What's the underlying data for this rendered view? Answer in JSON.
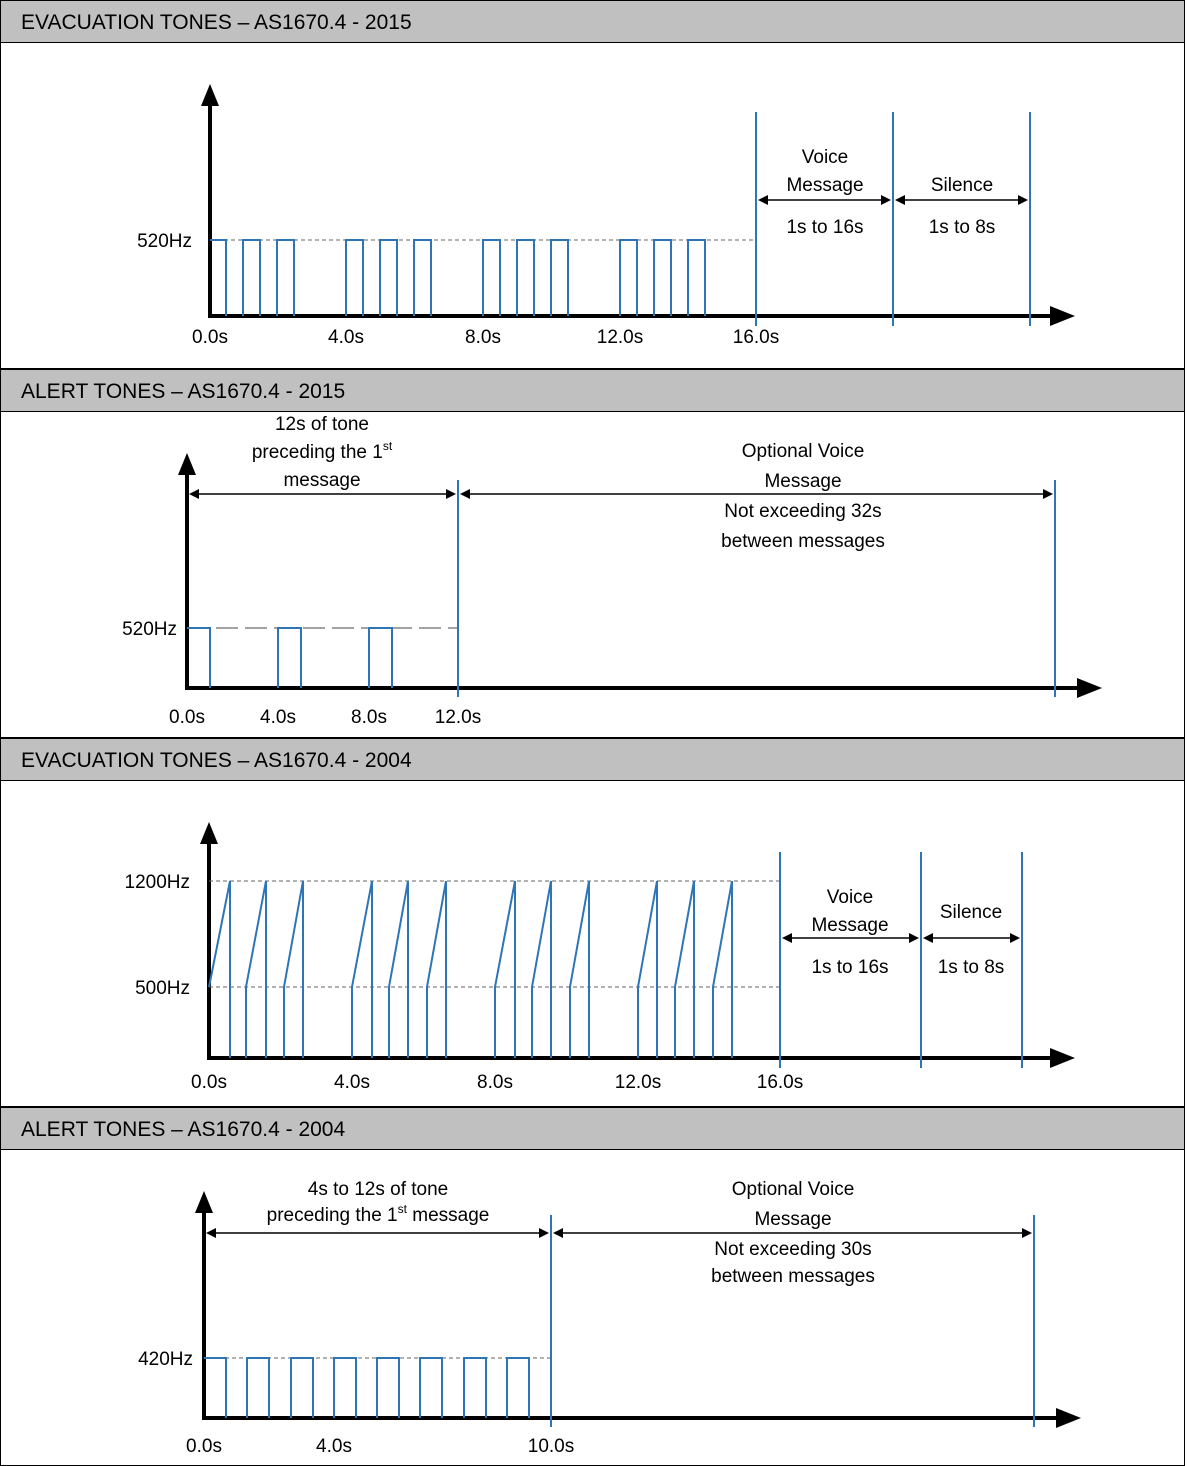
{
  "panels": [
    {
      "id": "evac2015",
      "title": "EVACUATION TONES – AS1670.4 - 2015",
      "y_labels": [
        "520Hz"
      ],
      "x_labels": [
        "0.0s",
        "4.0s",
        "8.0s",
        "12.0s",
        "16.0s"
      ],
      "annotations": {
        "voice_title_1": "Voice",
        "voice_title_2": "Message",
        "voice_range": "1s to 16s",
        "silence_title": "Silence",
        "silence_range": "1s to 8s"
      }
    },
    {
      "id": "alert2015",
      "title": "ALERT TONES – AS1670.4 - 2015",
      "y_labels": [
        "520Hz"
      ],
      "x_labels": [
        "0.0s",
        "4.0s",
        "8.0s",
        "12.0s"
      ],
      "annotations": {
        "pre_line_1": "12s of tone",
        "pre_line_2a": "preceding the 1",
        "pre_line_2_sup": "st",
        "pre_line_3": "message",
        "opt_line_1": "Optional Voice",
        "opt_line_2": "Message",
        "opt_line_3": "Not exceeding 32s",
        "opt_line_4": "between messages"
      }
    },
    {
      "id": "evac2004",
      "title": "EVACUATION TONES – AS1670.4 - 2004",
      "y_labels": [
        "1200Hz",
        "500Hz"
      ],
      "x_labels": [
        "0.0s",
        "4.0s",
        "8.0s",
        "12.0s",
        "16.0s"
      ],
      "annotations": {
        "voice_title_1": "Voice",
        "voice_title_2": "Message",
        "voice_range": "1s to 16s",
        "silence_title": "Silence",
        "silence_range": "1s to 8s"
      }
    },
    {
      "id": "alert2004",
      "title": "ALERT TONES – AS1670.4 - 2004",
      "y_labels": [
        "420Hz"
      ],
      "x_labels": [
        "0.0s",
        "4.0s",
        "10.0s"
      ],
      "annotations": {
        "pre_line_1": "4s to 12s of tone",
        "pre_line_2a": "preceding the 1",
        "pre_line_2_sup": "st",
        "pre_line_2b": " message",
        "opt_line_1": "Optional Voice",
        "opt_line_2": "Message",
        "opt_line_3": "Not exceeding 30s",
        "opt_line_4": "between messages"
      }
    }
  ],
  "colors": {
    "signal": "#2e75b6",
    "axis": "#000000",
    "header_bg": "#c0c0c0"
  }
}
